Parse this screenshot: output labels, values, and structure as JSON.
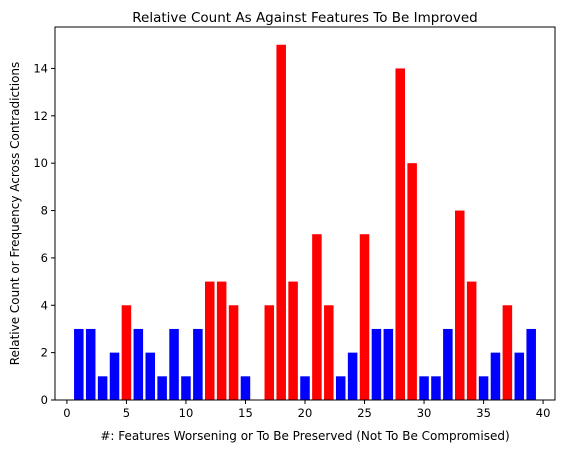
{
  "chart_data": {
    "type": "bar",
    "title": "Relative Count As Against Features To Be Improved",
    "xlabel": "#: Features Worsening or To Be Preserved (Not To Be Compromised)",
    "ylabel": "Relative Count or Frequency Across Contradictions",
    "xlim": [
      -1,
      41
    ],
    "ylim": [
      0,
      15.75
    ],
    "xticks": [
      0,
      5,
      10,
      15,
      20,
      25,
      30,
      35,
      40
    ],
    "yticks": [
      0,
      2,
      4,
      6,
      8,
      10,
      12,
      14
    ],
    "grid": false,
    "colors": {
      "low": "#0000ff",
      "high": "#ff0000"
    },
    "bars": [
      {
        "x": 1,
        "value": 3,
        "color": "#0000ff"
      },
      {
        "x": 2,
        "value": 3,
        "color": "#0000ff"
      },
      {
        "x": 3,
        "value": 1,
        "color": "#0000ff"
      },
      {
        "x": 4,
        "value": 2,
        "color": "#0000ff"
      },
      {
        "x": 5,
        "value": 4,
        "color": "#ff0000"
      },
      {
        "x": 6,
        "value": 3,
        "color": "#0000ff"
      },
      {
        "x": 7,
        "value": 2,
        "color": "#0000ff"
      },
      {
        "x": 8,
        "value": 1,
        "color": "#0000ff"
      },
      {
        "x": 9,
        "value": 3,
        "color": "#0000ff"
      },
      {
        "x": 10,
        "value": 1,
        "color": "#0000ff"
      },
      {
        "x": 11,
        "value": 3,
        "color": "#0000ff"
      },
      {
        "x": 12,
        "value": 5,
        "color": "#ff0000"
      },
      {
        "x": 13,
        "value": 5,
        "color": "#ff0000"
      },
      {
        "x": 14,
        "value": 4,
        "color": "#ff0000"
      },
      {
        "x": 15,
        "value": 1,
        "color": "#0000ff"
      },
      {
        "x": 16,
        "value": 0,
        "color": "#0000ff"
      },
      {
        "x": 17,
        "value": 4,
        "color": "#ff0000"
      },
      {
        "x": 18,
        "value": 15,
        "color": "#ff0000"
      },
      {
        "x": 19,
        "value": 5,
        "color": "#ff0000"
      },
      {
        "x": 20,
        "value": 1,
        "color": "#0000ff"
      },
      {
        "x": 21,
        "value": 7,
        "color": "#ff0000"
      },
      {
        "x": 22,
        "value": 4,
        "color": "#ff0000"
      },
      {
        "x": 23,
        "value": 1,
        "color": "#0000ff"
      },
      {
        "x": 24,
        "value": 2,
        "color": "#0000ff"
      },
      {
        "x": 25,
        "value": 7,
        "color": "#ff0000"
      },
      {
        "x": 26,
        "value": 3,
        "color": "#0000ff"
      },
      {
        "x": 27,
        "value": 3,
        "color": "#0000ff"
      },
      {
        "x": 28,
        "value": 14,
        "color": "#ff0000"
      },
      {
        "x": 29,
        "value": 10,
        "color": "#ff0000"
      },
      {
        "x": 30,
        "value": 1,
        "color": "#0000ff"
      },
      {
        "x": 31,
        "value": 1,
        "color": "#0000ff"
      },
      {
        "x": 32,
        "value": 3,
        "color": "#0000ff"
      },
      {
        "x": 33,
        "value": 8,
        "color": "#ff0000"
      },
      {
        "x": 34,
        "value": 5,
        "color": "#ff0000"
      },
      {
        "x": 35,
        "value": 1,
        "color": "#0000ff"
      },
      {
        "x": 36,
        "value": 2,
        "color": "#0000ff"
      },
      {
        "x": 37,
        "value": 4,
        "color": "#ff0000"
      },
      {
        "x": 38,
        "value": 2,
        "color": "#0000ff"
      },
      {
        "x": 39,
        "value": 3,
        "color": "#0000ff"
      }
    ]
  }
}
